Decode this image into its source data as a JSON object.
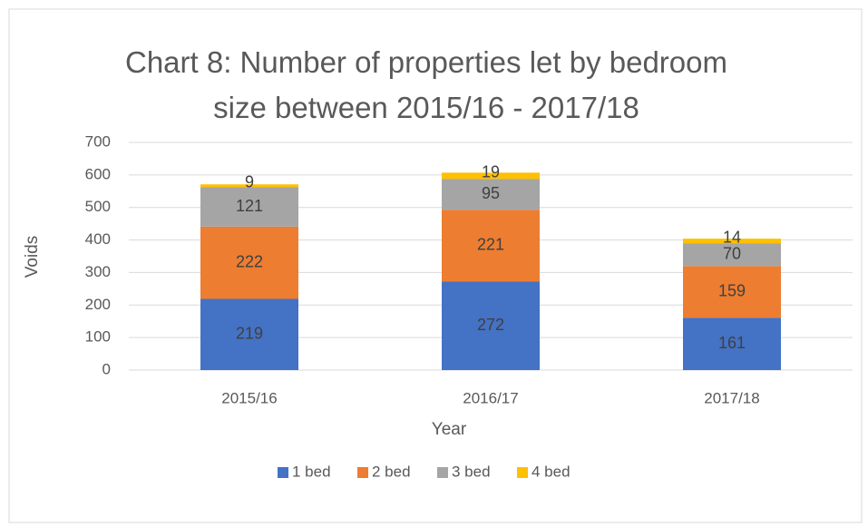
{
  "chart_data": {
    "type": "bar",
    "stacked": true,
    "title": "Chart 8: Number of properties let by bedroom size between 2015/16 - 2017/18",
    "x_label": "Year",
    "y_label": "Voids",
    "categories": [
      "2015/16",
      "2016/17",
      "2017/18"
    ],
    "series": [
      {
        "name": "1 bed",
        "color": "#4472c4",
        "values": [
          219,
          272,
          161
        ]
      },
      {
        "name": "2 bed",
        "color": "#ed7d31",
        "values": [
          222,
          221,
          159
        ]
      },
      {
        "name": "3 bed",
        "color": "#a5a5a5",
        "values": [
          121,
          95,
          70
        ]
      },
      {
        "name": "4 bed",
        "color": "#ffc000",
        "values": [
          9,
          19,
          14
        ]
      }
    ],
    "ylim": [
      0,
      700
    ],
    "yticks": [
      0,
      100,
      200,
      300,
      400,
      500,
      600,
      700
    ],
    "grid": true,
    "legend": "bottom"
  }
}
